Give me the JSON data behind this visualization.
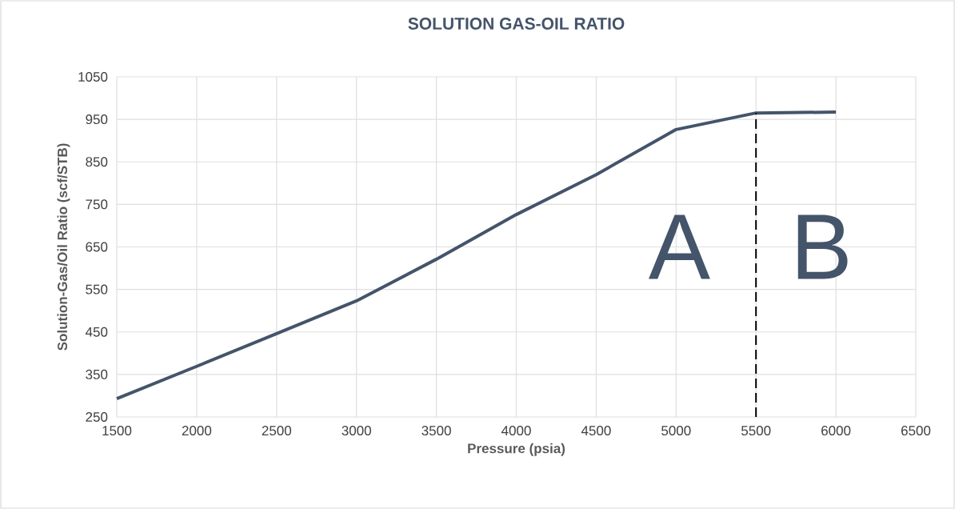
{
  "chart_data": {
    "type": "line",
    "title": "SOLUTION GAS-OIL RATIO",
    "xlabel": "Pressure (psia)",
    "ylabel": "Solution-Gas/Oil Ratio (scf/STB)",
    "x": [
      1500,
      2000,
      2500,
      3000,
      3500,
      4000,
      4500,
      5000,
      5500,
      6000
    ],
    "series": [
      {
        "color": "#44546a",
        "values": [
          293,
          369,
          446,
          523,
          621,
          726,
          820,
          926,
          965,
          967
        ]
      }
    ],
    "xlim": [
      1500,
      6500
    ],
    "xticks": [
      1500,
      2000,
      2500,
      3000,
      3500,
      4000,
      4500,
      5000,
      5500,
      6000,
      6500
    ],
    "ylim": [
      250,
      1050
    ],
    "yticks": [
      250,
      350,
      450,
      550,
      650,
      750,
      850,
      950,
      1050
    ],
    "grid": true,
    "marker": "none",
    "line_style": "solid",
    "ref_lines": [
      {
        "axis": "x",
        "value": 5500,
        "color": "#000000",
        "line_style": "dashed"
      }
    ],
    "annotations": [
      "A",
      "B"
    ]
  }
}
